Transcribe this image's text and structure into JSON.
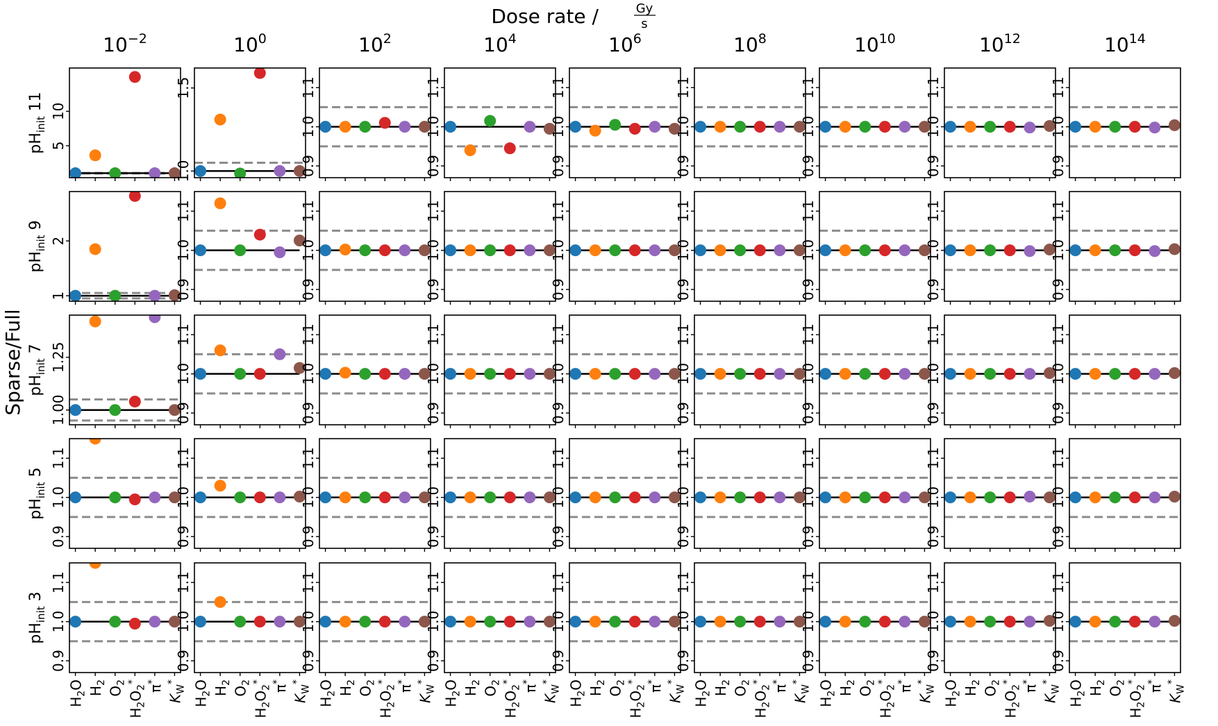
{
  "figure": {
    "suptitle": "Dose rate / ",
    "suptitle_unit_num": "Gy",
    "suptitle_unit_den": "s",
    "ylabel": "Sparse/Full"
  },
  "chart_data": {
    "type": "scatter",
    "colors": [
      "#1f77b4",
      "#ff7f0e",
      "#2ca02c",
      "#d62728",
      "#9467bd",
      "#8c564b"
    ],
    "categories": [
      {
        "main": "H",
        "sub": "2",
        "main2": "O",
        "sup": ""
      },
      {
        "main": "H",
        "sub": "2",
        "main2": "",
        "sup": ""
      },
      {
        "main": "O",
        "sub": "2",
        "main2": "",
        "sup": ""
      },
      {
        "main": "H",
        "sub": "2",
        "main2": "O",
        "sub2": "2",
        "sup": "*"
      },
      {
        "main": "π",
        "sub": "",
        "main2": "",
        "sup": "*"
      },
      {
        "main": "K",
        "sub": "W",
        "main2": "",
        "sup": "*",
        "italic": true
      }
    ],
    "columns": [
      {
        "base": "10",
        "exp": "−2"
      },
      {
        "base": "10",
        "exp": "0"
      },
      {
        "base": "10",
        "exp": "2"
      },
      {
        "base": "10",
        "exp": "4"
      },
      {
        "base": "10",
        "exp": "6"
      },
      {
        "base": "10",
        "exp": "8"
      },
      {
        "base": "10",
        "exp": "10"
      },
      {
        "base": "10",
        "exp": "12"
      },
      {
        "base": "10",
        "exp": "14"
      }
    ],
    "rows": [
      {
        "label_main": "pH",
        "label_sub": "init",
        "label_val": "11"
      },
      {
        "label_main": "pH",
        "label_sub": "init",
        "label_val": "9"
      },
      {
        "label_main": "pH",
        "label_sub": "init",
        "label_val": "7"
      },
      {
        "label_main": "pH",
        "label_sub": "init",
        "label_val": "5"
      },
      {
        "label_main": "pH",
        "label_sub": "init",
        "label_val": "3"
      }
    ],
    "reference_line": 1.0,
    "tolerance_lines": [
      0.95,
      1.05
    ],
    "standard_ylim": [
      0.87,
      1.15
    ],
    "standard_yticks": [
      0.9,
      1.0,
      1.1
    ],
    "panels": [
      [
        {
          "ylim": [
            0.35,
            16.3
          ],
          "yticks": [
            5,
            10
          ],
          "tick_labels": [
            "5",
            "10"
          ],
          "hlines": [
            0.95,
            1.05
          ],
          "values": [
            1.0,
            3.6,
            1.0,
            15.0,
            1.0,
            1.0
          ]
        },
        {
          "ylim": [
            0.96,
            1.62
          ],
          "yticks": [
            1.0,
            1.5
          ],
          "tick_labels": [
            "1.0",
            "1.5"
          ],
          "hlines": [
            0.95,
            1.05
          ],
          "values": [
            1.0,
            1.31,
            0.985,
            1.59,
            1.0,
            1.0
          ]
        },
        {
          "values": [
            1.0,
            1.0,
            1.0,
            1.01,
            1.0,
            1.0
          ]
        },
        {
          "values": [
            1.0,
            0.94,
            1.015,
            0.945,
            1.0,
            0.995
          ]
        },
        {
          "values": [
            1.0,
            0.99,
            1.005,
            0.995,
            1.0,
            0.995
          ]
        },
        {
          "values": [
            1.0,
            1.0,
            1.0,
            1.0,
            1.0,
            1.0
          ]
        },
        {
          "values": [
            1.0,
            1.0,
            1.0,
            1.0,
            1.0,
            1.0
          ]
        },
        {
          "values": [
            1.0,
            1.0,
            1.0,
            1.0,
            0.998,
            1.002
          ]
        },
        {
          "values": [
            1.0,
            1.0,
            1.0,
            1.0,
            0.998,
            1.004
          ]
        }
      ],
      [
        {
          "ylim": [
            0.9,
            2.9
          ],
          "yticks": [
            1,
            2
          ],
          "tick_labels": [
            "1",
            "2"
          ],
          "hlines": [
            0.95,
            1.05
          ],
          "values": [
            1.0,
            1.85,
            1.0,
            2.82,
            1.0,
            1.01
          ]
        },
        {
          "ylim": [
            0.87,
            1.15
          ],
          "yticks": [
            0.9,
            1.0,
            1.1
          ],
          "tick_labels": [
            "0.9",
            "1.0",
            "1.1"
          ],
          "hlines": [
            0.95,
            1.05
          ],
          "values": [
            1.0,
            1.12,
            1.0,
            1.04,
            0.995,
            1.025
          ]
        },
        {
          "values": [
            1.0,
            1.002,
            1.0,
            1.0,
            1.0,
            1.0
          ]
        },
        {
          "values": [
            1.0,
            1.0,
            1.0,
            1.0,
            1.0,
            1.0
          ]
        },
        {
          "values": [
            1.0,
            1.0,
            1.0,
            1.0,
            1.0,
            1.0
          ]
        },
        {
          "values": [
            1.0,
            1.0,
            1.0,
            1.0,
            1.0,
            1.0
          ]
        },
        {
          "values": [
            1.0,
            1.0,
            1.0,
            1.0,
            1.0,
            1.0
          ]
        },
        {
          "values": [
            1.0,
            1.0,
            1.0,
            1.0,
            0.998,
            1.002
          ]
        },
        {
          "values": [
            1.0,
            1.0,
            1.0,
            1.0,
            0.998,
            1.003
          ]
        }
      ],
      [
        {
          "ylim": [
            0.93,
            1.45
          ],
          "yticks": [
            1.0,
            1.25
          ],
          "tick_labels": [
            "1.00",
            "1.25"
          ],
          "hlines": [
            0.95,
            1.05
          ],
          "values": [
            1.0,
            1.42,
            1.0,
            1.04,
            1.44,
            1.0
          ]
        },
        {
          "ylim": [
            0.87,
            1.15
          ],
          "yticks": [
            0.9,
            1.0,
            1.1
          ],
          "tick_labels": [
            "0.9",
            "1.0",
            "1.1"
          ],
          "hlines": [
            0.95,
            1.05
          ],
          "values": [
            1.0,
            1.06,
            1.0,
            1.0,
            1.05,
            1.015
          ]
        },
        {
          "values": [
            1.0,
            1.003,
            1.0,
            1.0,
            1.0,
            1.0
          ]
        },
        {
          "values": [
            1.0,
            1.0,
            1.0,
            1.0,
            1.0,
            1.0
          ]
        },
        {
          "values": [
            1.0,
            1.0,
            1.0,
            1.0,
            1.0,
            1.0
          ]
        },
        {
          "values": [
            1.0,
            1.0,
            1.0,
            1.0,
            1.0,
            1.0
          ]
        },
        {
          "values": [
            1.0,
            1.0,
            1.0,
            1.0,
            1.0,
            1.0
          ]
        },
        {
          "values": [
            1.0,
            1.0,
            1.0,
            1.0,
            1.0,
            1.002
          ]
        },
        {
          "values": [
            1.0,
            1.0,
            1.0,
            1.0,
            1.0,
            1.002
          ]
        }
      ],
      [
        {
          "ylim": [
            0.87,
            1.15
          ],
          "yticks": [
            0.9,
            1.0,
            1.1
          ],
          "tick_labels": [
            "0.9",
            "1.0",
            "1.1"
          ],
          "hlines": [
            0.95,
            1.05
          ],
          "values": [
            1.0,
            1.15,
            1.0,
            0.995,
            1.0,
            1.0
          ]
        },
        {
          "ylim": [
            0.87,
            1.15
          ],
          "yticks": [
            0.9,
            1.0,
            1.1
          ],
          "tick_labels": [
            "0.9",
            "1.0",
            "1.1"
          ],
          "hlines": [
            0.95,
            1.05
          ],
          "values": [
            1.0,
            1.03,
            1.0,
            1.0,
            1.0,
            1.002
          ]
        },
        {
          "values": [
            1.0,
            1.0,
            1.0,
            1.0,
            1.0,
            1.0
          ]
        },
        {
          "values": [
            1.0,
            1.0,
            1.0,
            1.0,
            1.0,
            1.0
          ]
        },
        {
          "values": [
            1.0,
            1.0,
            1.0,
            1.0,
            1.0,
            1.0
          ]
        },
        {
          "values": [
            1.0,
            1.0,
            1.0,
            1.0,
            1.0,
            1.0
          ]
        },
        {
          "values": [
            1.0,
            1.0,
            1.0,
            1.0,
            1.0,
            1.0
          ]
        },
        {
          "values": [
            1.0,
            1.0,
            1.0,
            1.0,
            1.002,
            1.0
          ]
        },
        {
          "values": [
            1.0,
            1.0,
            1.0,
            1.0,
            1.0,
            1.002
          ]
        }
      ],
      [
        {
          "ylim": [
            0.87,
            1.15
          ],
          "yticks": [
            0.9,
            1.0,
            1.1
          ],
          "tick_labels": [
            "0.9",
            "1.0",
            "1.1"
          ],
          "hlines": [
            0.95,
            1.05
          ],
          "values": [
            1.0,
            1.15,
            1.0,
            0.995,
            1.0,
            1.0
          ]
        },
        {
          "ylim": [
            0.87,
            1.15
          ],
          "yticks": [
            0.9,
            1.0,
            1.1
          ],
          "tick_labels": [
            "0.9",
            "1.0",
            "1.1"
          ],
          "hlines": [
            0.95,
            1.05
          ],
          "values": [
            1.0,
            1.05,
            1.0,
            1.0,
            1.0,
            1.0
          ]
        },
        {
          "values": [
            1.0,
            1.0,
            1.0,
            1.0,
            1.0,
            1.0
          ]
        },
        {
          "values": [
            1.0,
            1.0,
            1.0,
            1.0,
            1.0,
            1.0
          ]
        },
        {
          "values": [
            1.0,
            1.0,
            1.0,
            1.0,
            1.0,
            1.0
          ]
        },
        {
          "values": [
            1.0,
            1.0,
            1.0,
            1.0,
            1.0,
            1.0
          ]
        },
        {
          "values": [
            1.0,
            1.0,
            1.0,
            1.0,
            1.0,
            1.0
          ]
        },
        {
          "values": [
            1.0,
            1.0,
            1.0,
            1.0,
            1.0,
            1.002
          ]
        },
        {
          "values": [
            1.0,
            1.0,
            1.0,
            1.0,
            1.0,
            1.002
          ]
        }
      ]
    ]
  }
}
